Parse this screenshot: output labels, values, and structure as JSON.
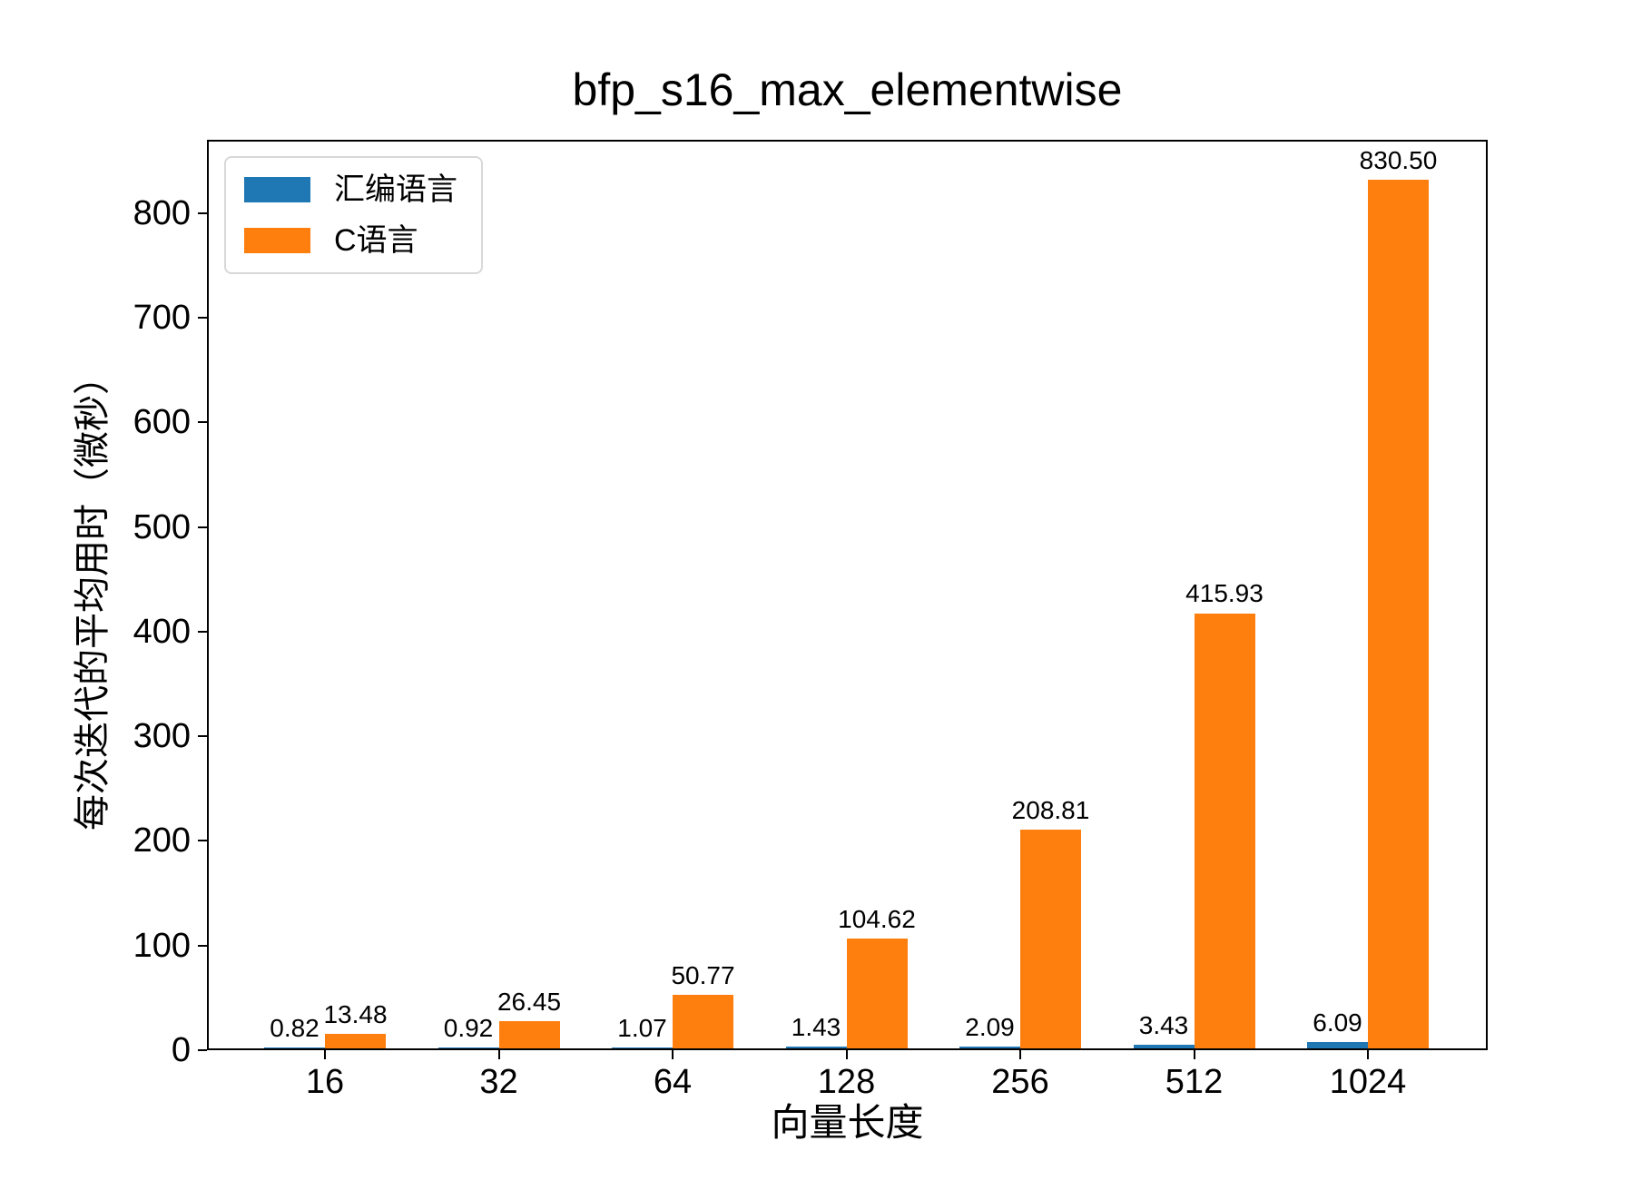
{
  "chart_data": {
    "type": "bar",
    "title": "bfp_s16_max_elementwise",
    "xlabel": "向量长度",
    "ylabel": "每次迭代的平均用时（微秒）",
    "categories": [
      "16",
      "32",
      "64",
      "128",
      "256",
      "512",
      "1024"
    ],
    "series": [
      {
        "name": "汇编语言",
        "color": "#1f77b4",
        "values": [
          0.82,
          0.92,
          1.07,
          1.43,
          2.09,
          3.43,
          6.09
        ],
        "labels": [
          "0.82",
          "0.92",
          "1.07",
          "1.43",
          "2.09",
          "3.43",
          "6.09"
        ]
      },
      {
        "name": "C语言",
        "color": "#ff7f0e",
        "values": [
          13.48,
          26.45,
          50.77,
          104.62,
          208.81,
          415.93,
          830.5
        ],
        "labels": [
          "13.48",
          "26.45",
          "50.77",
          "104.62",
          "208.81",
          "415.93",
          "830.50"
        ]
      }
    ],
    "ylim": [
      0,
      870
    ],
    "yticks": [
      0,
      100,
      200,
      300,
      400,
      500,
      600,
      700,
      800
    ],
    "grid": false,
    "legend_position": "upper left",
    "bar_value_labels": true,
    "frame_color": "#000000",
    "background_color": "#ffffff"
  }
}
